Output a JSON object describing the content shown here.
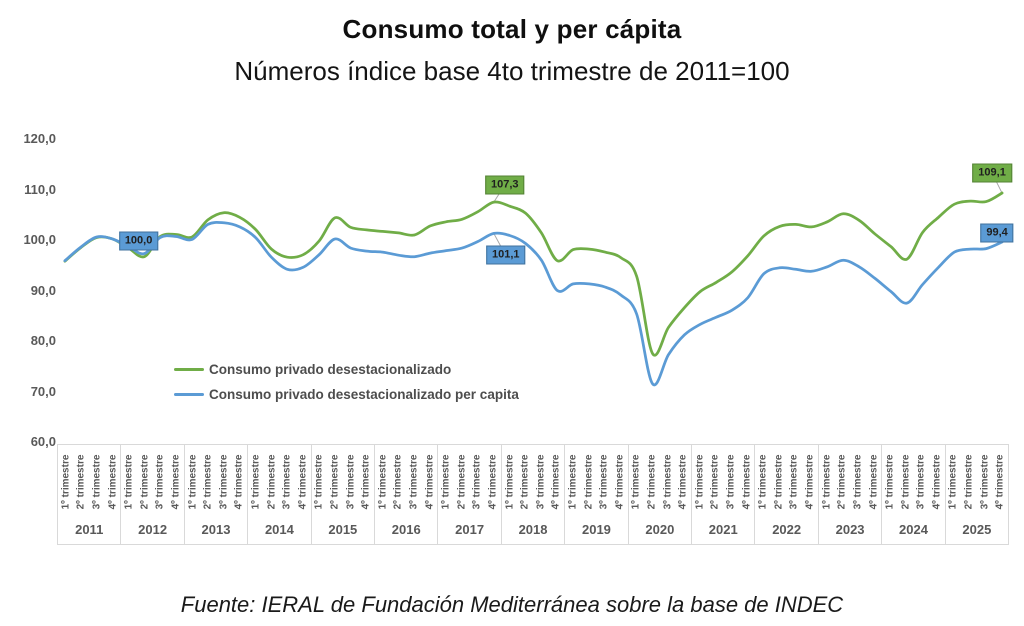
{
  "title": "Consumo total y per cápita",
  "subtitle": "Números índice base 4to trimestre de 2011=100",
  "footer": "Fuente: IERAL de Fundación Mediterránea sobre la base de INDEC",
  "colors": {
    "green": "#70AD47",
    "green_border": "#548235",
    "blue": "#5B9BD5",
    "blue_border": "#41719C",
    "axis_text": "#595959",
    "axis_border": "#D9D9D9",
    "connector": "#A6A6A6"
  },
  "chart_data": {
    "type": "line",
    "title": "Consumo total y per cápita",
    "subtitle": "Números índice base 4to trimestre de 2011=100",
    "grid": false,
    "smooth": true,
    "legend_position": "inside-left",
    "ylim": [
      60,
      120
    ],
    "y_tick_labels": [
      "120,0",
      "110,0",
      "100,0",
      "90,0",
      "80,0",
      "70,0",
      "60,0"
    ],
    "years": [
      "2011",
      "2012",
      "2013",
      "2014",
      "2015",
      "2016",
      "2017",
      "2018",
      "2019",
      "2020",
      "2021",
      "2022",
      "2023",
      "2024",
      "2025"
    ],
    "quarter_labels": [
      "1º trimestre",
      "2º trimestre",
      "3º trimestre",
      "4º trimestre"
    ],
    "series": [
      {
        "key": "total",
        "name": "Consumo privado desestacionalizado",
        "color": "#70AD47",
        "border": "#548235",
        "values": [
          95.6,
          98.3,
          100.3,
          100.0,
          98.2,
          96.5,
          100.5,
          100.9,
          100.4,
          103.8,
          105.2,
          104.3,
          101.9,
          98.0,
          96.4,
          96.9,
          99.6,
          104.2,
          102.3,
          101.8,
          101.5,
          101.2,
          100.8,
          102.6,
          103.4,
          103.9,
          105.4,
          107.3,
          106.5,
          105.1,
          101.2,
          95.7,
          97.9,
          98.0,
          97.4,
          96.3,
          92.6,
          77.3,
          82.5,
          86.4,
          89.6,
          91.4,
          93.5,
          96.7,
          100.6,
          102.5,
          102.9,
          102.4,
          103.4,
          105.0,
          103.7,
          101.0,
          98.5,
          96.0,
          101.3,
          104.3,
          106.9,
          107.5,
          107.4,
          109.1
        ]
      },
      {
        "key": "per_capita",
        "name": "Consumo privado desestacionalizado per capita",
        "color": "#5B9BD5",
        "border": "#41719C",
        "values": [
          95.7,
          98.4,
          100.4,
          100.0,
          98.5,
          97.1,
          100.3,
          100.5,
          99.9,
          102.9,
          103.2,
          102.4,
          100.3,
          96.4,
          94.0,
          94.4,
          96.9,
          100.0,
          98.2,
          97.6,
          97.4,
          96.8,
          96.5,
          97.2,
          97.7,
          98.2,
          99.5,
          101.1,
          100.7,
          99.1,
          95.8,
          89.8,
          91.1,
          91.1,
          90.5,
          88.9,
          85.1,
          71.3,
          77.1,
          81.0,
          83.1,
          84.5,
          85.9,
          88.4,
          93.1,
          94.3,
          94.0,
          93.6,
          94.5,
          95.8,
          94.5,
          92.2,
          89.6,
          87.3,
          91.0,
          94.4,
          97.4,
          98.0,
          98.1,
          99.4
        ]
      }
    ],
    "annotations": [
      {
        "text": "100,0",
        "series": 1,
        "point": 3,
        "placement": "right",
        "connector": false
      },
      {
        "text": "107,3",
        "series": 0,
        "point": 27,
        "placement": "above",
        "connector": true
      },
      {
        "text": "101,1",
        "series": 1,
        "point": 27,
        "placement": "below-right",
        "connector": true
      },
      {
        "text": "109,1",
        "series": 0,
        "point": 59,
        "placement": "above-left",
        "connector": true
      },
      {
        "text": "99,4",
        "series": 1,
        "point": 59,
        "placement": "above-near",
        "connector": true
      }
    ]
  }
}
